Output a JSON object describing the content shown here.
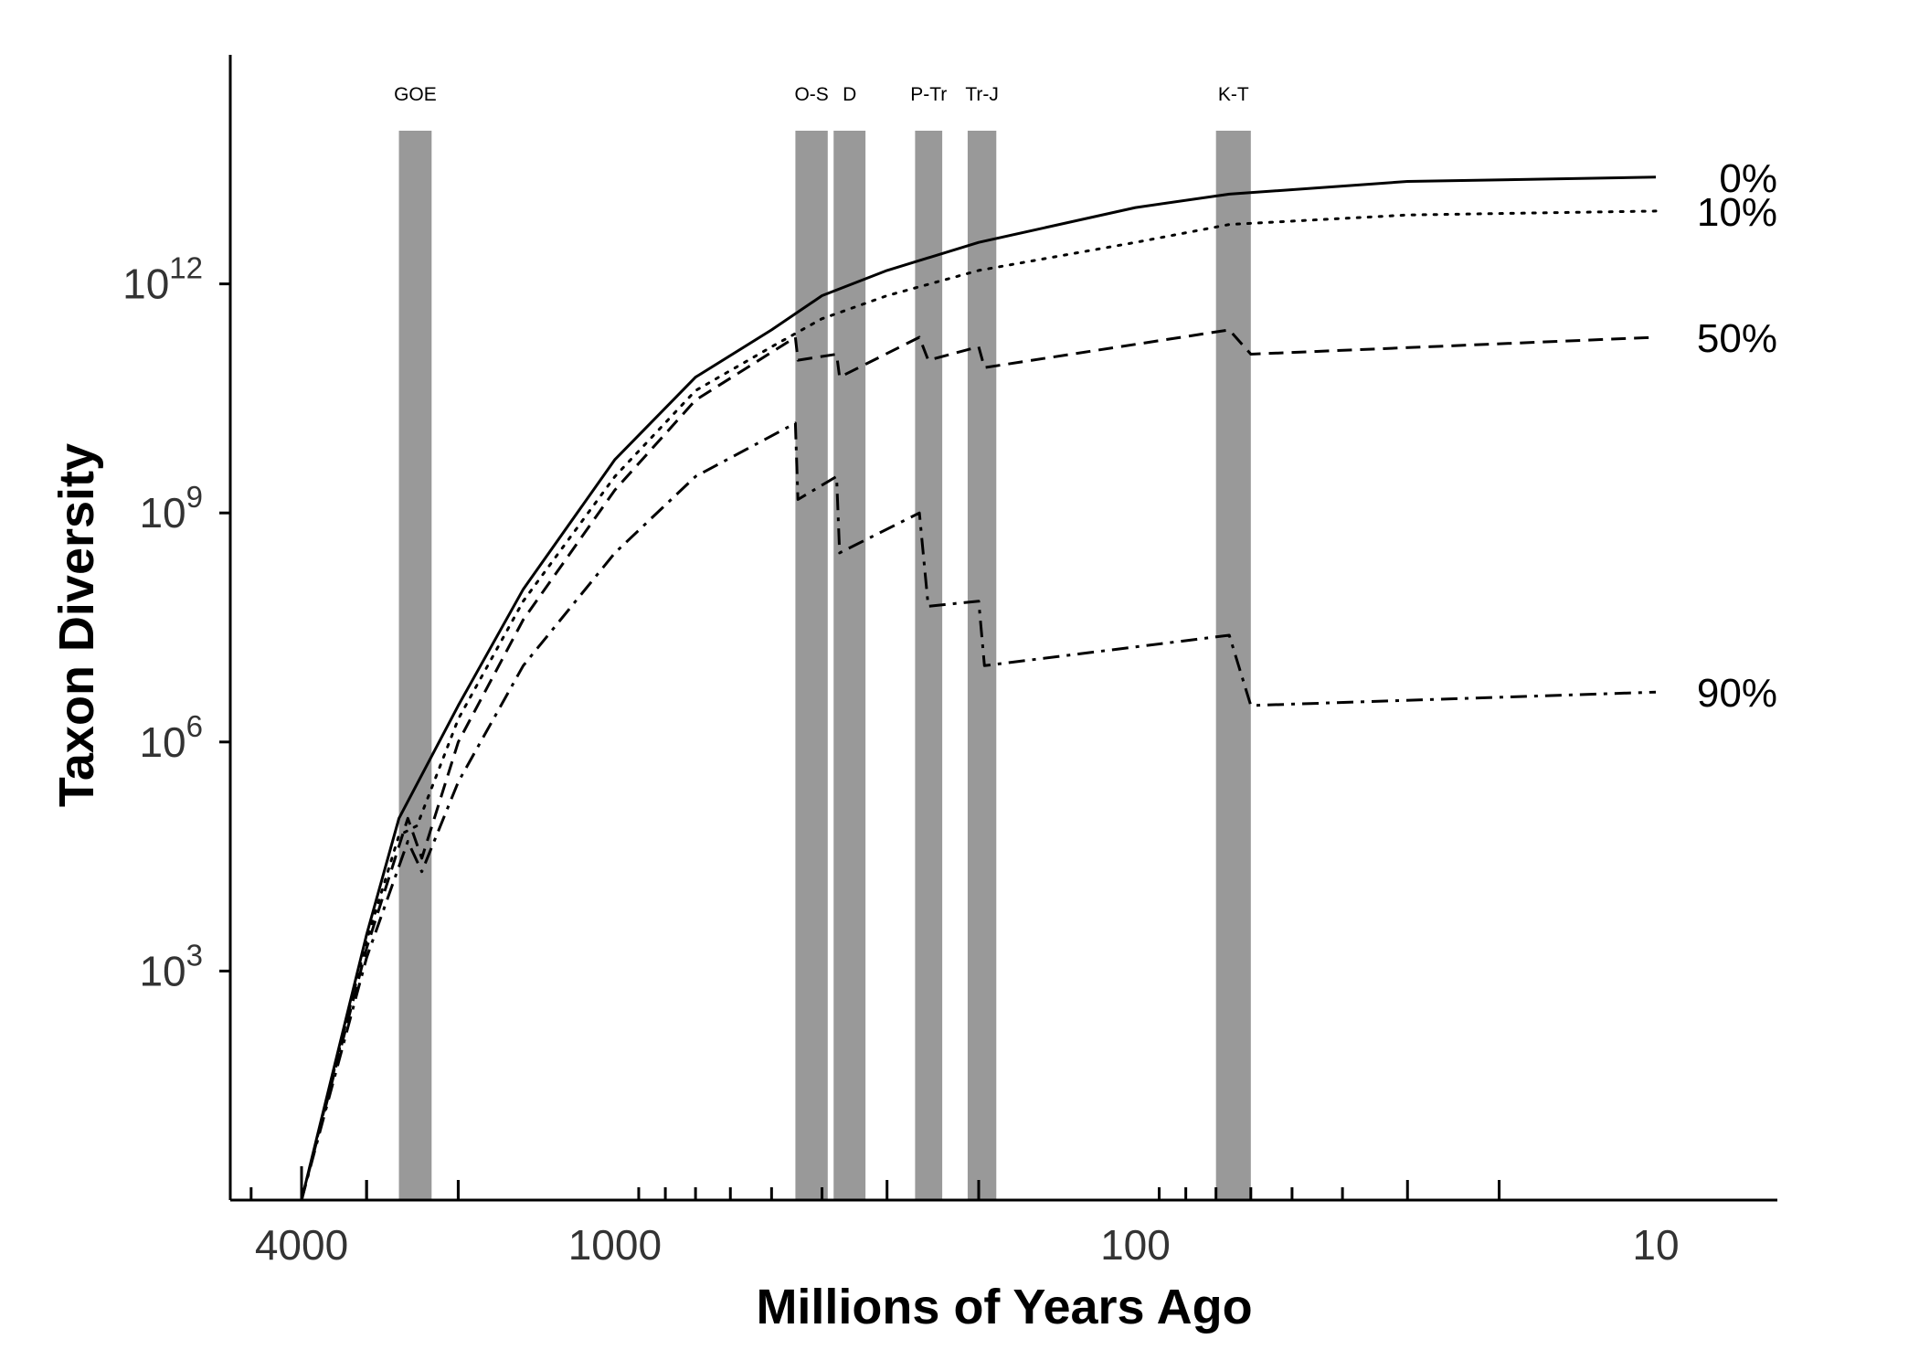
{
  "chart_data": {
    "type": "line",
    "title": "",
    "xlabel": "Millions of Years Ago",
    "ylabel": "Taxon Diversity",
    "x_scale": "log",
    "x_reversed": true,
    "xlim": [
      4600,
      7.3
    ],
    "x_ticks": [
      4000,
      1000,
      100,
      10
    ],
    "x_tick_labels": [
      "4000",
      "1000",
      "100",
      "10"
    ],
    "y_scale": "log",
    "ylim": [
      1,
      1000000000000000.0
    ],
    "y_ticks": [
      1000,
      1000000,
      1000000000,
      1000000000000
    ],
    "y_tick_labels": [
      {
        "base": "10",
        "exp": "3"
      },
      {
        "base": "10",
        "exp": "6"
      },
      {
        "base": "10",
        "exp": "9"
      },
      {
        "base": "10",
        "exp": "12"
      }
    ],
    "grid": false,
    "legend": "none",
    "extinction_events": [
      {
        "name": "GOE",
        "from": 2600,
        "to": 2250
      },
      {
        "name": "O-S",
        "from": 450,
        "to": 390
      },
      {
        "name": "D",
        "from": 380,
        "to": 330
      },
      {
        "name": "P-Tr",
        "from": 265,
        "to": 235
      },
      {
        "name": "Tr-J",
        "from": 210,
        "to": 185
      },
      {
        "name": "K-T",
        "from": 70,
        "to": 60
      }
    ],
    "series": [
      {
        "name": "0%",
        "style": "solid",
        "points": [
          [
            4000,
            1
          ],
          [
            3000,
            3000
          ],
          [
            2600,
            100000
          ],
          [
            2000,
            3000000
          ],
          [
            1500,
            100000000
          ],
          [
            1000,
            5000000000
          ],
          [
            700,
            60000000000
          ],
          [
            500,
            250000000000
          ],
          [
            400,
            700000000000
          ],
          [
            300,
            1500000000000
          ],
          [
            200,
            3500000000000
          ],
          [
            100,
            10000000000000
          ],
          [
            66,
            15000000000000
          ],
          [
            30,
            22000000000000
          ],
          [
            10,
            25000000000000
          ]
        ]
      },
      {
        "name": "10%",
        "style": "dotted",
        "points": [
          [
            4000,
            1
          ],
          [
            3000,
            2500
          ],
          [
            2600,
            60000
          ],
          [
            2400,
            80000
          ],
          [
            2000,
            2000000
          ],
          [
            1500,
            70000000
          ],
          [
            1000,
            3000000000
          ],
          [
            700,
            40000000000
          ],
          [
            500,
            150000000000
          ],
          [
            400,
            350000000000
          ],
          [
            300,
            700000000000
          ],
          [
            200,
            1500000000000
          ],
          [
            100,
            3500000000000
          ],
          [
            66,
            6000000000000
          ],
          [
            30,
            8000000000000
          ],
          [
            10,
            9000000000000
          ]
        ]
      },
      {
        "name": "50%",
        "style": "dashed",
        "points": [
          [
            4000,
            1
          ],
          [
            3000,
            2000
          ],
          [
            2500,
            100000
          ],
          [
            2350,
            30000
          ],
          [
            2000,
            1000000
          ],
          [
            1500,
            40000000
          ],
          [
            1000,
            2000000000
          ],
          [
            700,
            30000000000
          ],
          [
            450,
            200000000000
          ],
          [
            445,
            100000000000
          ],
          [
            375,
            120000000000
          ],
          [
            370,
            60000000000
          ],
          [
            260,
            200000000000
          ],
          [
            250,
            100000000000
          ],
          [
            200,
            150000000000
          ],
          [
            195,
            80000000000
          ],
          [
            66,
            250000000000
          ],
          [
            60,
            120000000000
          ],
          [
            10,
            200000000000
          ]
        ]
      },
      {
        "name": "90%",
        "style": "dashdot",
        "points": [
          [
            4000,
            1
          ],
          [
            3000,
            1500
          ],
          [
            2500,
            50000
          ],
          [
            2350,
            20000
          ],
          [
            2000,
            300000
          ],
          [
            1500,
            10000000
          ],
          [
            1000,
            300000000
          ],
          [
            700,
            3000000000
          ],
          [
            450,
            15000000000
          ],
          [
            445,
            1500000000
          ],
          [
            375,
            3000000000
          ],
          [
            370,
            300000000
          ],
          [
            260,
            1000000000
          ],
          [
            250,
            60000000
          ],
          [
            200,
            70000000
          ],
          [
            195,
            10000000
          ],
          [
            66,
            25000000
          ],
          [
            60,
            3000000
          ],
          [
            10,
            4500000
          ]
        ]
      }
    ]
  }
}
